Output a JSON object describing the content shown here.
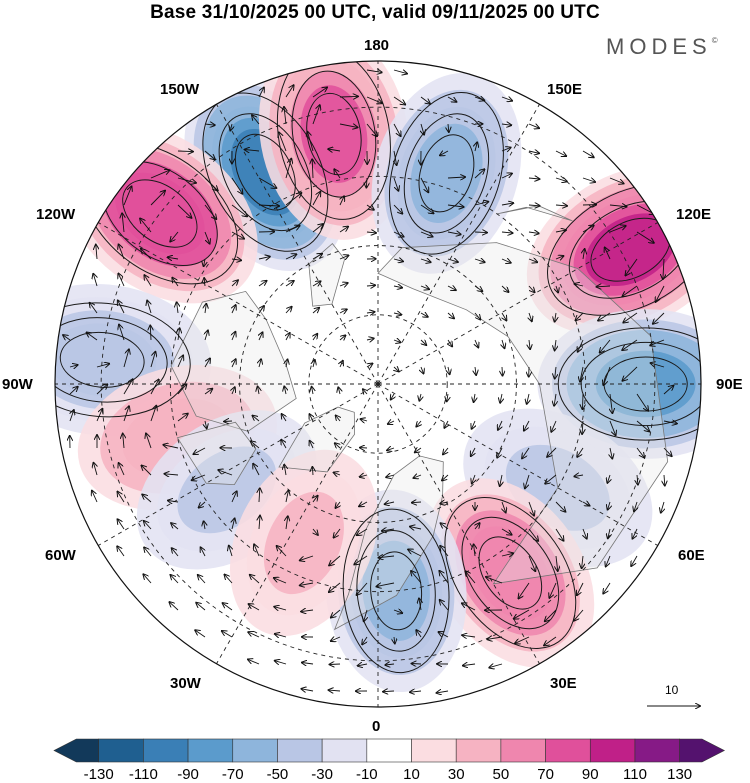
{
  "title": "Base 31/10/2025 00 UTC, valid 09/11/2025 00 UTC",
  "brand": "MODES",
  "brand_mark": "©",
  "longitude_labels": {
    "n180": "180",
    "w150": "150W",
    "e150": "150E",
    "w120": "120W",
    "e120": "120E",
    "w90": "90W",
    "e90": "90E",
    "w60": "60W",
    "e60": "60E",
    "w30": "30W",
    "e30": "30E",
    "s0": "0"
  },
  "reference_vector": {
    "label": "10"
  },
  "colorbar": {
    "ticks": [
      "-130",
      "-110",
      "-90",
      "-70",
      "-50",
      "-30",
      "-10",
      "10",
      "30",
      "50",
      "70",
      "90",
      "110",
      "130"
    ],
    "colors": [
      "#12395a",
      "#1f5f90",
      "#3a7fb6",
      "#5b9bcc",
      "#8eb5dc",
      "#b9c6e5",
      "#e2e2f2",
      "#ffffff",
      "#fbdde1",
      "#f6b3c2",
      "#ef86ae",
      "#e0509b",
      "#c02088",
      "#861a86",
      "#54126e"
    ]
  },
  "colors": {
    "ocean": "#ffffff",
    "land_fill": "#e9e9e9",
    "grid": "#222222"
  },
  "anomaly_centers": [
    {
      "name": "pacific-low",
      "lon": -152,
      "lat": 38,
      "value": -100
    },
    {
      "name": "pacific-high-a",
      "lon": -170,
      "lat": 35,
      "value": 70
    },
    {
      "name": "pacific-high-b",
      "lon": -128,
      "lat": 30,
      "value": 85
    },
    {
      "name": "bering-low",
      "lon": 162,
      "lat": 42,
      "value": -55
    },
    {
      "name": "china-high",
      "lon": 118,
      "lat": 28,
      "value": 90
    },
    {
      "name": "siberia-low",
      "lon": 90,
      "lat": 32,
      "value": -85
    },
    {
      "name": "central-asia-low",
      "lon": 60,
      "lat": 45,
      "value": -40
    },
    {
      "name": "europe-high",
      "lon": 35,
      "lat": 40,
      "value": 65
    },
    {
      "name": "atlantic-low",
      "lon": 5,
      "lat": 45,
      "value": -55
    },
    {
      "name": "n-america-low",
      "lon": -95,
      "lat": 30,
      "value": -50
    },
    {
      "name": "atlantic-high",
      "lon": -75,
      "lat": 45,
      "value": 45
    },
    {
      "name": "west-atlantic-low",
      "lon": -55,
      "lat": 50,
      "value": -40
    },
    {
      "name": "labrador-high",
      "lon": -25,
      "lat": 52,
      "value": 35
    }
  ]
}
